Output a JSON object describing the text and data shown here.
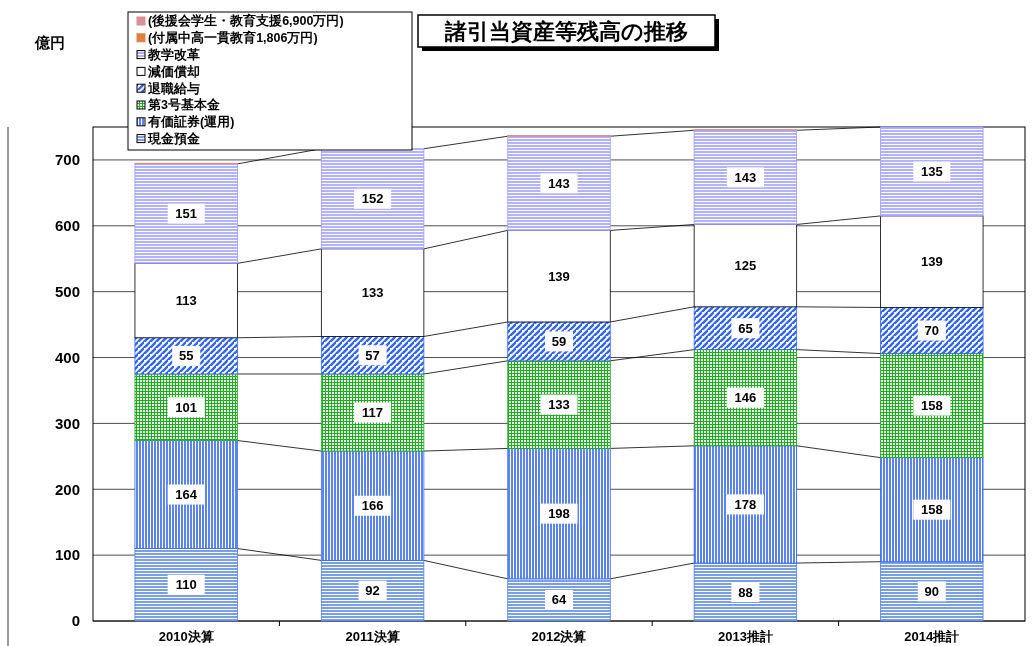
{
  "chart_data": {
    "type": "bar",
    "title": "諸引当資産等残高の推移",
    "annotations": [
      "億円"
    ],
    "categories": [
      "2010決算",
      "2011決算",
      "2012決算",
      "2013推計",
      "2014推計"
    ],
    "stacked": true,
    "ylim": [
      0,
      750
    ],
    "yticks": [
      0,
      100,
      200,
      300,
      400,
      500,
      600,
      700
    ],
    "grid": "y",
    "legend": "top left",
    "series": [
      {
        "name": "現金預金",
        "color": "#4f7fe0",
        "values": [
          110,
          92,
          64,
          88,
          90
        ],
        "value_labels": [
          "110",
          "92",
          "64",
          "88",
          "90"
        ]
      },
      {
        "name": "有価証券(運用)",
        "color": "#3366ee",
        "values": [
          164,
          166,
          198,
          178,
          158
        ],
        "value_labels": [
          "164",
          "166",
          "198",
          "178",
          "158"
        ]
      },
      {
        "name": "第3号基本金",
        "color": "#22aa22",
        "values": [
          101,
          117,
          133,
          146,
          158
        ],
        "value_labels": [
          "101",
          "117",
          "133",
          "146",
          "158"
        ]
      },
      {
        "name": "退職給与",
        "color": "#3366ee",
        "values": [
          55,
          57,
          59,
          65,
          70
        ],
        "value_labels": [
          "55",
          "57",
          "59",
          "65",
          "70"
        ]
      },
      {
        "name": "減価償却",
        "color": "#ffffff",
        "values": [
          113,
          133,
          139,
          125,
          139
        ],
        "value_labels": [
          "113",
          "133",
          "139",
          "125",
          "139"
        ]
      },
      {
        "name": "教学改革",
        "color": "#9999ff",
        "values": [
          151,
          152,
          143,
          143,
          135
        ],
        "value_labels": [
          "151",
          "152",
          "143",
          "143",
          "135"
        ]
      },
      {
        "name": "(付属中高一貫教育1,806万円)",
        "color": "#e08040",
        "values": [
          null,
          null,
          null,
          null,
          null
        ]
      },
      {
        "name": "(後援会学生・教育支援6,900万円)",
        "color": "#d89090",
        "values": [
          1,
          null,
          1,
          1,
          null
        ]
      }
    ]
  }
}
